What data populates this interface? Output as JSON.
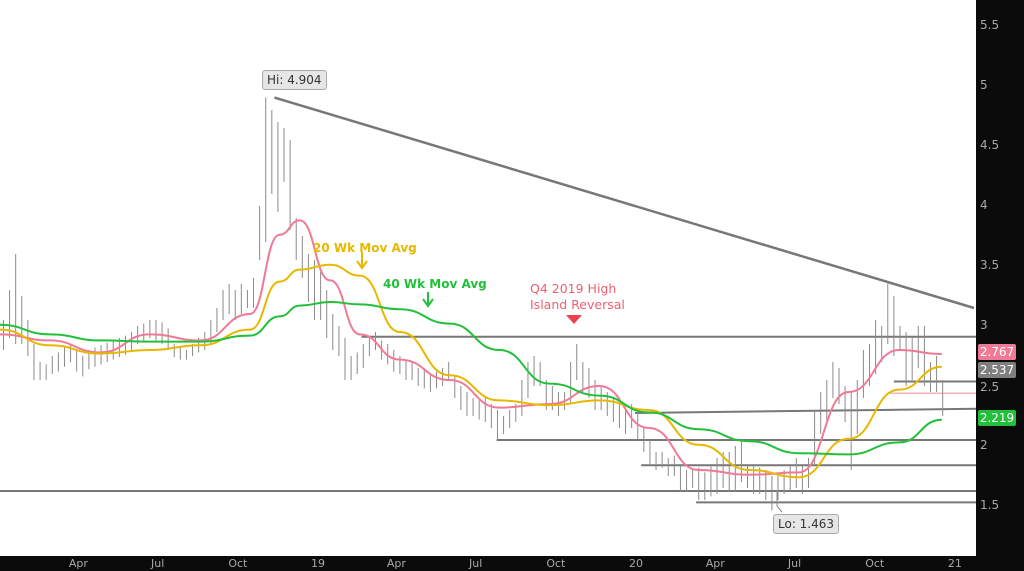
{
  "chart_data": {
    "type": "line",
    "subtype": "weekly OHLC bars with moving averages",
    "ylim": [
      1.1,
      5.7
    ],
    "y_ticks": [
      "5.5",
      "5",
      "4.5",
      "4",
      "3.5",
      "3",
      "2.5",
      "2",
      "1.5"
    ],
    "x_ticks": [
      {
        "label": "Apr",
        "date": "2018-04-01"
      },
      {
        "label": "Jul",
        "date": "2018-07-01"
      },
      {
        "label": "Oct",
        "date": "2018-10-01"
      },
      {
        "label": "19",
        "date": "2019-01-01"
      },
      {
        "label": "Apr",
        "date": "2019-04-01"
      },
      {
        "label": "Jul",
        "date": "2019-07-01"
      },
      {
        "label": "Oct",
        "date": "2019-10-01"
      },
      {
        "label": "20",
        "date": "2020-01-01"
      },
      {
        "label": "Apr",
        "date": "2020-04-01"
      },
      {
        "label": "Jul",
        "date": "2020-07-01"
      },
      {
        "label": "Oct",
        "date": "2020-10-01"
      },
      {
        "label": "21",
        "date": "2021-01-01"
      }
    ],
    "bars": {
      "frequency": "weekly",
      "first_week": "2018-01-05",
      "high": [
        3.05,
        3.3,
        3.6,
        3.25,
        3.05,
        2.85,
        2.7,
        2.68,
        2.75,
        2.78,
        2.82,
        2.85,
        2.8,
        2.75,
        2.8,
        2.82,
        2.84,
        2.86,
        2.88,
        2.9,
        2.92,
        2.95,
        3.0,
        3.02,
        3.05,
        3.05,
        3.03,
        2.98,
        2.85,
        2.82,
        2.8,
        2.85,
        2.9,
        2.95,
        3.05,
        3.15,
        3.3,
        3.35,
        3.3,
        3.35,
        3.3,
        3.4,
        4.0,
        4.904,
        4.8,
        4.7,
        4.65,
        4.55,
        3.9,
        3.75,
        3.6,
        3.55,
        3.45,
        3.3,
        3.1,
        3.0,
        2.9,
        2.75,
        2.78,
        2.85,
        2.92,
        2.95,
        2.88,
        2.85,
        2.8,
        2.75,
        2.72,
        2.7,
        2.65,
        2.65,
        2.6,
        2.62,
        2.65,
        2.7,
        2.58,
        2.5,
        2.45,
        2.4,
        2.38,
        2.4,
        2.35,
        2.3,
        2.25,
        2.3,
        2.35,
        2.55,
        2.7,
        2.75,
        2.7,
        2.55,
        2.5,
        2.45,
        2.45,
        2.7,
        2.85,
        2.7,
        2.65,
        2.55,
        2.5,
        2.45,
        2.4,
        2.35,
        2.3,
        2.35,
        2.3,
        2.15,
        2.05,
        1.95,
        1.95,
        1.9,
        1.92,
        1.85,
        1.8,
        1.8,
        1.82,
        1.78,
        1.85,
        1.9,
        1.95,
        1.95,
        2.0,
        2.05,
        1.85,
        1.85,
        1.82,
        1.8,
        1.75,
        1.75,
        1.8,
        1.85,
        1.9,
        1.85,
        1.9,
        2.3,
        2.45,
        2.55,
        2.7,
        2.65,
        2.5,
        2.45,
        2.55,
        2.8,
        2.85,
        3.05,
        3.0,
        3.37,
        3.25,
        3.0,
        2.95,
        2.9,
        3.0,
        3.0,
        2.7,
        2.75,
        2.55
      ],
      "low": [
        2.8,
        2.9,
        2.85,
        2.85,
        2.75,
        2.55,
        2.55,
        2.55,
        2.6,
        2.62,
        2.66,
        2.7,
        2.62,
        2.58,
        2.64,
        2.66,
        2.68,
        2.7,
        2.72,
        2.74,
        2.76,
        2.8,
        2.85,
        2.88,
        2.9,
        2.88,
        2.85,
        2.8,
        2.74,
        2.72,
        2.72,
        2.75,
        2.78,
        2.8,
        2.85,
        2.95,
        3.05,
        3.1,
        3.05,
        3.1,
        3.15,
        3.15,
        3.55,
        3.7,
        4.1,
        3.95,
        4.2,
        3.8,
        3.55,
        3.4,
        3.2,
        3.05,
        3.05,
        2.9,
        2.8,
        2.75,
        2.55,
        2.55,
        2.6,
        2.65,
        2.75,
        2.8,
        2.72,
        2.68,
        2.62,
        2.6,
        2.55,
        2.55,
        2.5,
        2.48,
        2.45,
        2.48,
        2.5,
        2.55,
        2.4,
        2.3,
        2.25,
        2.25,
        2.22,
        2.2,
        2.15,
        2.05,
        2.1,
        2.15,
        2.2,
        2.25,
        2.4,
        2.5,
        2.5,
        2.3,
        2.3,
        2.25,
        2.3,
        2.35,
        2.55,
        2.45,
        2.4,
        2.3,
        2.3,
        2.25,
        2.2,
        2.15,
        2.1,
        2.15,
        2.05,
        1.95,
        1.85,
        1.8,
        1.82,
        1.75,
        1.75,
        1.62,
        1.62,
        1.65,
        1.55,
        1.55,
        1.58,
        1.6,
        1.65,
        1.62,
        1.62,
        1.7,
        1.65,
        1.6,
        1.6,
        1.55,
        1.463,
        1.55,
        1.6,
        1.62,
        1.65,
        1.6,
        1.65,
        1.85,
        2.1,
        2.2,
        2.4,
        2.35,
        2.2,
        1.8,
        2.1,
        2.4,
        2.5,
        2.6,
        2.7,
        2.85,
        2.75,
        2.8,
        2.5,
        2.55,
        2.65,
        2.5,
        2.45,
        2.45,
        2.25
      ]
    },
    "series": [
      {
        "name": "",
        "color": "#f07a95",
        "points": [
          [
            "2018-01-01",
            2.93
          ],
          [
            "2018-02-27",
            2.88
          ],
          [
            "2018-04-26",
            2.78
          ],
          [
            "2018-06-22",
            2.93
          ],
          [
            "2018-08-19",
            2.88
          ],
          [
            "2018-10-15",
            3.1
          ],
          [
            "2018-11-18",
            3.76
          ],
          [
            "2018-12-11",
            3.88
          ],
          [
            "2019-01-15",
            3.38
          ],
          [
            "2019-02-18",
            2.93
          ],
          [
            "2019-04-05",
            2.72
          ],
          [
            "2019-06-01",
            2.55
          ],
          [
            "2019-07-28",
            2.32
          ],
          [
            "2019-09-24",
            2.35
          ],
          [
            "2019-11-20",
            2.5
          ],
          [
            "2020-01-16",
            2.15
          ],
          [
            "2020-03-13",
            1.8
          ],
          [
            "2020-05-10",
            1.76
          ],
          [
            "2020-07-06",
            1.78
          ],
          [
            "2020-09-01",
            2.45
          ],
          [
            "2020-10-29",
            2.8
          ],
          [
            "2020-12-17",
            2.767
          ]
        ]
      },
      {
        "name": "20 Wk Mov Avg",
        "color": "#e8b800",
        "points": [
          [
            "2018-01-01",
            2.97
          ],
          [
            "2018-02-27",
            2.84
          ],
          [
            "2018-04-26",
            2.77
          ],
          [
            "2018-06-22",
            2.8
          ],
          [
            "2018-08-19",
            2.84
          ],
          [
            "2018-10-15",
            2.97
          ],
          [
            "2018-11-18",
            3.37
          ],
          [
            "2018-12-11",
            3.47
          ],
          [
            "2019-01-15",
            3.51
          ],
          [
            "2019-02-18",
            3.42
          ],
          [
            "2019-04-05",
            2.95
          ],
          [
            "2019-06-01",
            2.59
          ],
          [
            "2019-07-28",
            2.38
          ],
          [
            "2019-09-24",
            2.34
          ],
          [
            "2019-11-20",
            2.38
          ],
          [
            "2020-01-16",
            2.3
          ],
          [
            "2020-03-13",
            2.01
          ],
          [
            "2020-05-10",
            1.8
          ],
          [
            "2020-07-06",
            1.74
          ],
          [
            "2020-09-01",
            2.06
          ],
          [
            "2020-10-29",
            2.47
          ],
          [
            "2020-12-17",
            2.66
          ]
        ]
      },
      {
        "name": "40 Wk Mov Avg",
        "color": "#22c03a",
        "points": [
          [
            "2018-01-01",
            3.01
          ],
          [
            "2018-02-27",
            2.93
          ],
          [
            "2018-04-26",
            2.88
          ],
          [
            "2018-06-22",
            2.87
          ],
          [
            "2018-08-19",
            2.87
          ],
          [
            "2018-10-15",
            2.92
          ],
          [
            "2018-11-18",
            3.08
          ],
          [
            "2018-12-11",
            3.17
          ],
          [
            "2019-01-15",
            3.2
          ],
          [
            "2019-02-18",
            3.18
          ],
          [
            "2019-04-05",
            3.14
          ],
          [
            "2019-06-01",
            3.02
          ],
          [
            "2019-07-28",
            2.8
          ],
          [
            "2019-09-24",
            2.52
          ],
          [
            "2019-11-20",
            2.42
          ],
          [
            "2020-01-16",
            2.28
          ],
          [
            "2020-03-13",
            2.14
          ],
          [
            "2020-05-10",
            2.04
          ],
          [
            "2020-07-06",
            1.94
          ],
          [
            "2020-09-01",
            1.93
          ],
          [
            "2020-10-29",
            2.03
          ],
          [
            "2020-12-17",
            2.219
          ]
        ]
      }
    ],
    "trendline": {
      "from": [
        "2018-11-12",
        4.904
      ],
      "to": [
        "2021-01-23",
        3.15
      ],
      "color": "#777777"
    },
    "levels": [
      {
        "from": "2019-02-20",
        "value": 2.91,
        "color": "#777777"
      },
      {
        "from": "2020-10-23",
        "value": 2.537,
        "color": "#777777"
      },
      {
        "from": "2020-10-19",
        "value": 2.44,
        "color": "#f49aa8"
      },
      {
        "from": "2019-12-31",
        "value": 2.275,
        "value_end": 2.31,
        "color": "#777777"
      },
      {
        "from": "2019-07-25",
        "value": 2.05,
        "color": "#777777"
      },
      {
        "from": "2020-01-07",
        "value": 1.84,
        "color": "#777777"
      },
      {
        "from": "2018-01-01",
        "value": 1.625,
        "color": "#777777"
      },
      {
        "from": "2020-03-10",
        "value": 1.53,
        "color": "#777777"
      }
    ],
    "annotations": {
      "hi_label": "Hi: 4.904",
      "lo_label": "Lo: 1.463",
      "ma20_label": "20 Wk Mov Avg",
      "ma40_label": "40 Wk Mov Avg",
      "reversal_line1": "Q4 2019 High",
      "reversal_line2": "Island Reversal"
    },
    "price_tags": [
      {
        "text": "2.767",
        "value": 2.767,
        "color": "#f07a95"
      },
      {
        "text": "2.537",
        "value": 2.537,
        "color": "#7f7f7f"
      },
      {
        "text": "2.219",
        "value": 2.219,
        "color": "#22c03a"
      }
    ]
  }
}
